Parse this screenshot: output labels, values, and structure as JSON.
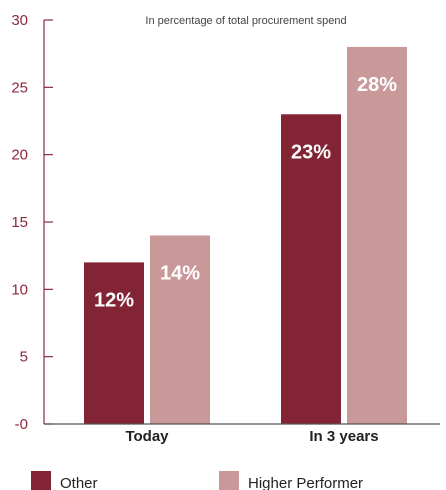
{
  "chart_data": {
    "type": "bar",
    "title": "",
    "subtitle": "In percentage of total procurement spend",
    "xlabel": "",
    "ylabel": "",
    "categories": [
      "Today",
      "In 3 years"
    ],
    "series": [
      {
        "name": "Other",
        "values": [
          12,
          23
        ],
        "labels": [
          "12%",
          "23%"
        ],
        "color": "#822433"
      },
      {
        "name": "Higher Performer",
        "values": [
          14,
          28
        ],
        "labels": [
          "14%",
          "28%"
        ],
        "color": "#C9999A"
      }
    ],
    "ylim": [
      0,
      30
    ],
    "yticks": [
      0,
      5,
      10,
      15,
      20,
      25,
      30
    ],
    "ytick_labels": [
      "-0",
      "5",
      "10",
      "15",
      "20",
      "25",
      "30"
    ],
    "grid": false,
    "legend_position": "bottom",
    "colors": {
      "axis": "#8a2a3e",
      "tick_text": "#8a2a3e",
      "category_text": "#222222",
      "data_label_text": "#ffffff",
      "subtitle_text": "#444444"
    }
  }
}
